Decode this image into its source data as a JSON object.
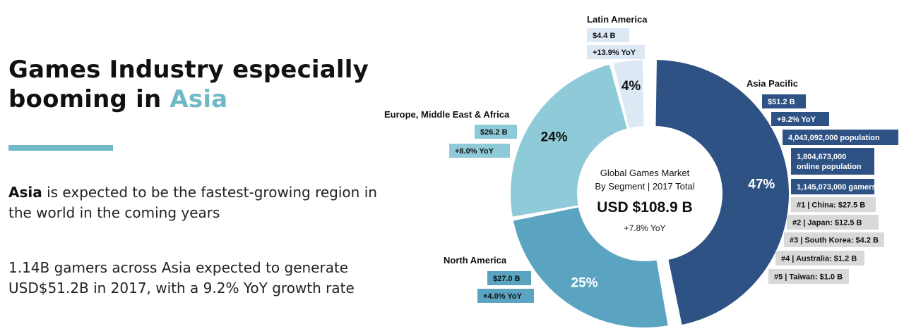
{
  "slide": {
    "title_line1": "Games Industry especially",
    "title_line2_prefix": "booming in ",
    "title_line2_accent": "Asia",
    "para1_bold": "Asia",
    "para1_rest": " is expected to be the fastest-growing region in the world in the coming years",
    "para2": "1.14B gamers across Asia expected to generate USD$51.2B in 2017, with a 9.2% YoY growth rate",
    "accent_color": "#6fb9c9"
  },
  "chart_data": {
    "type": "pie",
    "variant": "donut",
    "center": {
      "line1": "Global Games Market",
      "line2": "By Segment | 2017 Total",
      "total": "USD $108.9 B",
      "growth": "+7.8% YoY"
    },
    "segments": [
      {
        "name": "Asia Pacific",
        "value": 47,
        "label": "47%",
        "revenue": "$51.2 B",
        "yoy": "+9.2% YoY",
        "color": "#2e5284"
      },
      {
        "name": "North America",
        "value": 25,
        "label": "25%",
        "revenue": "$27.0 B",
        "yoy": "+4.0% YoY",
        "color": "#5ba4c1"
      },
      {
        "name": "Europe, Middle East & Africa",
        "value": 24,
        "label": "24%",
        "revenue": "$26.2 B",
        "yoy": "+8.0% YoY",
        "color": "#8fcad9"
      },
      {
        "name": "Latin America",
        "value": 4,
        "label": "4%",
        "revenue": "$4.4 B",
        "yoy": "+13.9% YoY",
        "color": "#dce9f4"
      }
    ],
    "asia_details": {
      "stats": [
        "4,043,092,000 population",
        "1,804,673,000\nonline population",
        "1,145,073,000 gamers"
      ],
      "ranking": [
        "#1 | China: $27.5 B",
        "#2 | Japan: $12.5 B",
        "#3 | South Korea: $4.2 B",
        "#4 | Australia: $1.2 B",
        "#5 | Taiwan: $1.0 B"
      ]
    }
  }
}
